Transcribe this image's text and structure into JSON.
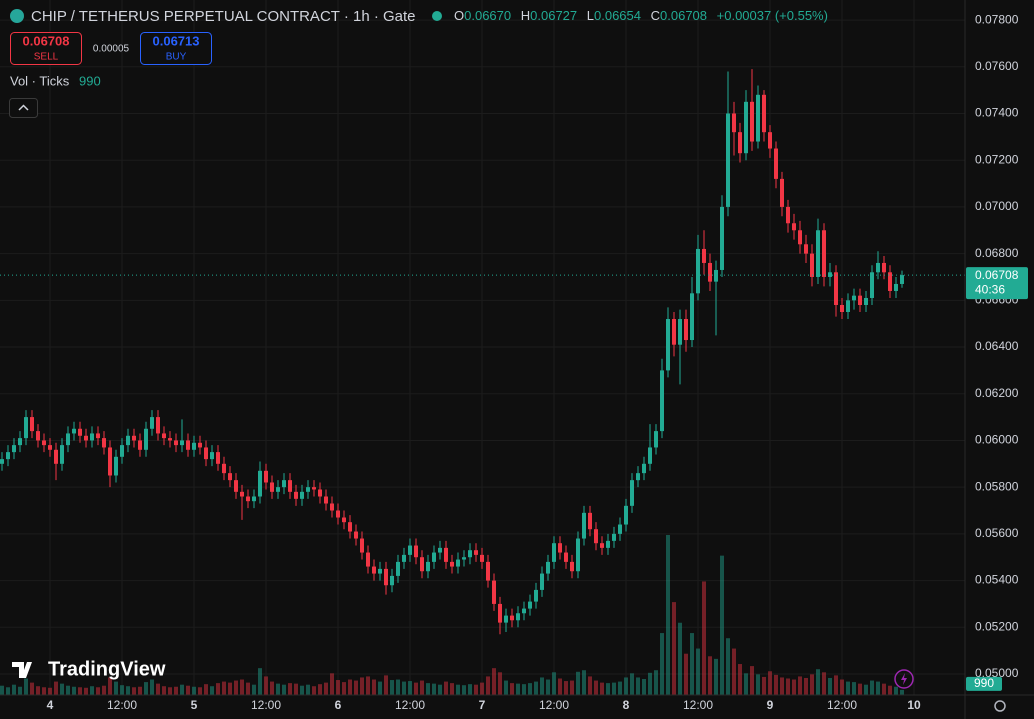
{
  "chart_data": {
    "type": "candlestick",
    "title": "CHIP / TETHERUS PERPETUAL CONTRACT · 1h · Gate",
    "header": {
      "o_label": "O",
      "o": "0.06670",
      "h_label": "H",
      "h": "0.06727",
      "l_label": "L",
      "l": "0.06654",
      "c_label": "C",
      "c": "0.06708",
      "change": "+0.00037 (+0.55%)"
    },
    "trade": {
      "sell_price": "0.06708",
      "sell_label": "SELL",
      "spread": "0.00005",
      "buy_price": "0.06713",
      "buy_label": "BUY"
    },
    "volume_legend": {
      "label": "Vol · Ticks",
      "value": "990"
    },
    "brand": "TradingView",
    "last_price_label": {
      "price": "0.06708",
      "countdown": "40:36"
    },
    "volume_label": "990",
    "up_color": "#22ab94",
    "down_color": "#f23645",
    "ylim": [
      0.0491,
      0.07886
    ],
    "yticks": [
      {
        "value": 0.078,
        "label": "0.07800"
      },
      {
        "value": 0.076,
        "label": "0.07600"
      },
      {
        "value": 0.074,
        "label": "0.07400"
      },
      {
        "value": 0.072,
        "label": "0.07200"
      },
      {
        "value": 0.07,
        "label": "0.07000"
      },
      {
        "value": 0.068,
        "label": "0.06800"
      },
      {
        "value": 0.066,
        "label": "0.06600"
      },
      {
        "value": 0.064,
        "label": "0.06400"
      },
      {
        "value": 0.062,
        "label": "0.06200"
      },
      {
        "value": 0.06,
        "label": "0.06000"
      },
      {
        "value": 0.058,
        "label": "0.05800"
      },
      {
        "value": 0.056,
        "label": "0.05600"
      },
      {
        "value": 0.054,
        "label": "0.05400"
      },
      {
        "value": 0.052,
        "label": "0.05200"
      },
      {
        "value": 0.05,
        "label": "0.05000"
      }
    ],
    "xticks": [
      {
        "value": 8,
        "label": "4"
      },
      {
        "value": 20,
        "label": "12:00"
      },
      {
        "value": 32,
        "label": "5"
      },
      {
        "value": 44,
        "label": "12:00"
      },
      {
        "value": 56,
        "label": "6"
      },
      {
        "value": 68,
        "label": "12:00"
      },
      {
        "value": 80,
        "label": "7"
      },
      {
        "value": 92,
        "label": "12:00"
      },
      {
        "value": 104,
        "label": "8"
      },
      {
        "value": 116,
        "label": "12:00"
      },
      {
        "value": 128,
        "label": "9"
      },
      {
        "value": 140,
        "label": "12:00"
      },
      {
        "value": 152,
        "label": "10"
      }
    ],
    "open": [
      0.059,
      0.0592,
      0.0595,
      0.0598,
      0.0601,
      0.061,
      0.0604,
      0.06,
      0.0598,
      0.0596,
      0.059,
      0.0598,
      0.0603,
      0.0605,
      0.0602,
      0.06,
      0.0603,
      0.0601,
      0.0597,
      0.0585,
      0.0593,
      0.0598,
      0.0602,
      0.06,
      0.0596,
      0.0605,
      0.061,
      0.0603,
      0.0601,
      0.06,
      0.0598,
      0.06,
      0.0596,
      0.0599,
      0.0597,
      0.0592,
      0.0595,
      0.059,
      0.0586,
      0.0583,
      0.0578,
      0.0576,
      0.0574,
      0.0576,
      0.0587,
      0.0582,
      0.0578,
      0.058,
      0.0583,
      0.0578,
      0.0575,
      0.0578,
      0.058,
      0.0579,
      0.0576,
      0.0573,
      0.057,
      0.0567,
      0.0565,
      0.0561,
      0.0558,
      0.0552,
      0.0546,
      0.0543,
      0.0545,
      0.0538,
      0.0542,
      0.0548,
      0.0551,
      0.0555,
      0.055,
      0.0544,
      0.0548,
      0.0552,
      0.0554,
      0.0548,
      0.0546,
      0.0549,
      0.055,
      0.0553,
      0.0551,
      0.0548,
      0.054,
      0.053,
      0.0522,
      0.0525,
      0.0523,
      0.0526,
      0.0528,
      0.0531,
      0.0536,
      0.0543,
      0.0548,
      0.0556,
      0.0552,
      0.0548,
      0.0544,
      0.0558,
      0.0569,
      0.0562,
      0.0556,
      0.0554,
      0.0557,
      0.056,
      0.0564,
      0.0572,
      0.0583,
      0.0586,
      0.059,
      0.0597,
      0.0604,
      0.063,
      0.0652,
      0.0641,
      0.0652,
      0.0643,
      0.0663,
      0.0682,
      0.0676,
      0.0668,
      0.0673,
      0.07,
      0.074,
      0.0732,
      0.0723,
      0.0745,
      0.0728,
      0.0748,
      0.0732,
      0.0725,
      0.0712,
      0.07,
      0.0693,
      0.069,
      0.0684,
      0.068,
      0.067,
      0.069,
      0.067,
      0.0672,
      0.0658,
      0.0655,
      0.066,
      0.0662,
      0.0658,
      0.0661,
      0.0672,
      0.0676,
      0.0672,
      0.0664,
      0.0667
    ],
    "high": [
      0.0595,
      0.0598,
      0.0601,
      0.0604,
      0.0613,
      0.0613,
      0.0607,
      0.0603,
      0.0601,
      0.0599,
      0.0601,
      0.0606,
      0.0608,
      0.0608,
      0.0605,
      0.0606,
      0.0606,
      0.0604,
      0.06,
      0.0596,
      0.0601,
      0.0605,
      0.0605,
      0.0603,
      0.0608,
      0.0613,
      0.0613,
      0.0606,
      0.0604,
      0.0603,
      0.0609,
      0.0603,
      0.0602,
      0.0602,
      0.06,
      0.0598,
      0.0598,
      0.0593,
      0.0589,
      0.0586,
      0.0581,
      0.0579,
      0.0579,
      0.0591,
      0.059,
      0.0585,
      0.0583,
      0.0586,
      0.0586,
      0.0581,
      0.0581,
      0.0583,
      0.0583,
      0.0582,
      0.0579,
      0.0576,
      0.0573,
      0.057,
      0.0568,
      0.0564,
      0.0561,
      0.0555,
      0.0549,
      0.0548,
      0.0548,
      0.0545,
      0.0551,
      0.0554,
      0.0558,
      0.0558,
      0.0553,
      0.0551,
      0.0555,
      0.0557,
      0.0557,
      0.0551,
      0.0552,
      0.0553,
      0.0556,
      0.0556,
      0.0554,
      0.0551,
      0.0543,
      0.0533,
      0.0528,
      0.0528,
      0.0529,
      0.0531,
      0.0534,
      0.0539,
      0.0546,
      0.0551,
      0.0559,
      0.0559,
      0.0555,
      0.0551,
      0.0561,
      0.0572,
      0.0572,
      0.0565,
      0.0559,
      0.056,
      0.0563,
      0.0567,
      0.0575,
      0.0586,
      0.0589,
      0.0593,
      0.0607,
      0.0607,
      0.0635,
      0.0657,
      0.0655,
      0.0656,
      0.0656,
      0.067,
      0.0688,
      0.069,
      0.068,
      0.0677,
      0.0705,
      0.0758,
      0.0745,
      0.0736,
      0.075,
      0.0759,
      0.0752,
      0.075,
      0.0735,
      0.0728,
      0.0715,
      0.0703,
      0.0697,
      0.0694,
      0.0688,
      0.0684,
      0.0695,
      0.0693,
      0.0676,
      0.0675,
      0.0661,
      0.0663,
      0.0665,
      0.0665,
      0.0664,
      0.0675,
      0.0681,
      0.0679,
      0.0675,
      0.067,
      0.06727
    ],
    "low": [
      0.0587,
      0.0589,
      0.0592,
      0.0595,
      0.0598,
      0.0601,
      0.0597,
      0.0595,
      0.0593,
      0.0583,
      0.0587,
      0.0595,
      0.06,
      0.0599,
      0.0597,
      0.0597,
      0.0598,
      0.0594,
      0.058,
      0.0582,
      0.059,
      0.0595,
      0.0597,
      0.0593,
      0.0593,
      0.0602,
      0.06,
      0.0598,
      0.0597,
      0.0595,
      0.0595,
      0.0593,
      0.0593,
      0.0594,
      0.0589,
      0.0589,
      0.0587,
      0.0583,
      0.058,
      0.0575,
      0.0566,
      0.0571,
      0.0571,
      0.0573,
      0.0579,
      0.0575,
      0.0575,
      0.0577,
      0.0575,
      0.0572,
      0.0572,
      0.0575,
      0.0576,
      0.0573,
      0.057,
      0.0567,
      0.0564,
      0.0562,
      0.0558,
      0.0555,
      0.0549,
      0.0543,
      0.054,
      0.054,
      0.0534,
      0.0535,
      0.0539,
      0.0545,
      0.0548,
      0.0547,
      0.0541,
      0.0541,
      0.0545,
      0.0549,
      0.0545,
      0.0543,
      0.0543,
      0.0546,
      0.0547,
      0.0548,
      0.0545,
      0.0537,
      0.0527,
      0.0517,
      0.0518,
      0.052,
      0.052,
      0.0523,
      0.0525,
      0.0528,
      0.0533,
      0.054,
      0.0545,
      0.0549,
      0.0545,
      0.0541,
      0.0541,
      0.0555,
      0.0559,
      0.0553,
      0.0551,
      0.0551,
      0.0554,
      0.0557,
      0.0561,
      0.0569,
      0.058,
      0.0583,
      0.0587,
      0.0594,
      0.0601,
      0.0627,
      0.0636,
      0.0624,
      0.0638,
      0.064,
      0.066,
      0.0671,
      0.0664,
      0.0645,
      0.067,
      0.0696,
      0.0722,
      0.0719,
      0.072,
      0.0724,
      0.0725,
      0.0728,
      0.0721,
      0.0708,
      0.0696,
      0.0689,
      0.0686,
      0.068,
      0.0676,
      0.0666,
      0.0667,
      0.0666,
      0.0666,
      0.0653,
      0.0652,
      0.0652,
      0.0656,
      0.0655,
      0.0655,
      0.0658,
      0.0669,
      0.0669,
      0.0661,
      0.0661,
      0.06654
    ],
    "close": [
      0.0592,
      0.0595,
      0.0598,
      0.0601,
      0.061,
      0.0604,
      0.06,
      0.0598,
      0.0596,
      0.059,
      0.0598,
      0.0603,
      0.0605,
      0.0602,
      0.06,
      0.0603,
      0.0601,
      0.0597,
      0.0585,
      0.0593,
      0.0598,
      0.0602,
      0.06,
      0.0596,
      0.0605,
      0.061,
      0.0603,
      0.0601,
      0.06,
      0.0598,
      0.06,
      0.0596,
      0.0599,
      0.0597,
      0.0592,
      0.0595,
      0.059,
      0.0586,
      0.0583,
      0.0578,
      0.0576,
      0.0574,
      0.0576,
      0.0587,
      0.0582,
      0.0578,
      0.058,
      0.0583,
      0.0578,
      0.0575,
      0.0578,
      0.058,
      0.0579,
      0.0576,
      0.0573,
      0.057,
      0.0567,
      0.0565,
      0.0561,
      0.0558,
      0.0552,
      0.0546,
      0.0543,
      0.0545,
      0.0538,
      0.0542,
      0.0548,
      0.0551,
      0.0555,
      0.055,
      0.0544,
      0.0548,
      0.0552,
      0.0554,
      0.0548,
      0.0546,
      0.0549,
      0.055,
      0.0553,
      0.0551,
      0.0548,
      0.054,
      0.053,
      0.0522,
      0.0525,
      0.0523,
      0.0526,
      0.0528,
      0.0531,
      0.0536,
      0.0543,
      0.0548,
      0.0556,
      0.0552,
      0.0548,
      0.0544,
      0.0558,
      0.0569,
      0.0562,
      0.0556,
      0.0554,
      0.0557,
      0.056,
      0.0564,
      0.0572,
      0.0583,
      0.0586,
      0.059,
      0.0597,
      0.0604,
      0.063,
      0.0652,
      0.0641,
      0.0652,
      0.0643,
      0.0663,
      0.0682,
      0.0676,
      0.0668,
      0.0673,
      0.07,
      0.074,
      0.0732,
      0.0723,
      0.0745,
      0.0728,
      0.0748,
      0.0732,
      0.0725,
      0.0712,
      0.07,
      0.0693,
      0.069,
      0.0684,
      0.068,
      0.067,
      0.069,
      0.067,
      0.0672,
      0.0658,
      0.0655,
      0.066,
      0.0662,
      0.0658,
      0.0661,
      0.0672,
      0.0676,
      0.0672,
      0.0664,
      0.0667,
      0.06708
    ],
    "volume": [
      1800,
      1500,
      2000,
      1600,
      3200,
      2400,
      1700,
      1500,
      1400,
      2600,
      2200,
      1800,
      1600,
      1500,
      1400,
      1700,
      1500,
      1800,
      3400,
      2600,
      1900,
      1700,
      1500,
      1600,
      2500,
      3000,
      2200,
      1700,
      1500,
      1600,
      2000,
      1800,
      1600,
      1500,
      2100,
      1700,
      2300,
      2600,
      2400,
      2800,
      3000,
      2400,
      2000,
      5200,
      3600,
      2600,
      2200,
      2000,
      2300,
      2200,
      1800,
      2000,
      1700,
      2100,
      2400,
      4200,
      2900,
      2500,
      3000,
      2800,
      3400,
      3600,
      3000,
      2600,
      3800,
      2900,
      3000,
      2600,
      2700,
      2400,
      2800,
      2300,
      2200,
      2000,
      2600,
      2300,
      2000,
      1900,
      2100,
      2000,
      2400,
      3600,
      5200,
      4400,
      2800,
      2300,
      2200,
      2100,
      2300,
      2600,
      3400,
      3000,
      4400,
      3200,
      2700,
      2800,
      4500,
      4800,
      3600,
      2800,
      2400,
      2300,
      2400,
      2600,
      3400,
      4200,
      3400,
      3100,
      4300,
      4800,
      12000,
      31000,
      18000,
      14000,
      8000,
      12000,
      9000,
      22000,
      7500,
      7000,
      27000,
      11000,
      9000,
      6000,
      4200,
      5600,
      4000,
      3500,
      4600,
      3900,
      3400,
      3200,
      3000,
      3600,
      3300,
      4000,
      5000,
      4400,
      3300,
      3800,
      3000,
      2600,
      2500,
      2200,
      2000,
      2800,
      2600,
      2200,
      1800,
      1600,
      990
    ]
  }
}
